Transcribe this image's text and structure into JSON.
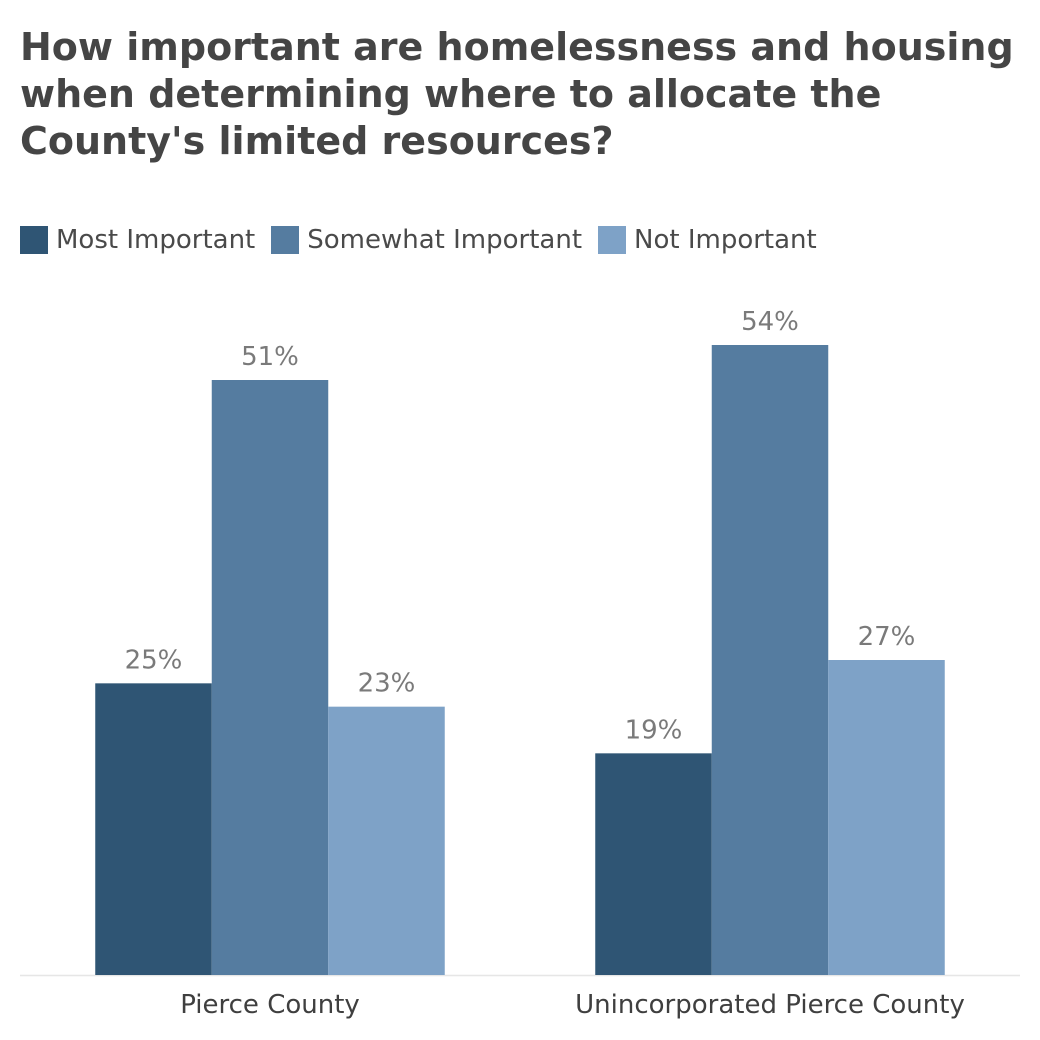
{
  "chart_data": {
    "type": "bar",
    "title": "How important are homelessness and housing when determining where to allocate the County's limited resources?",
    "categories": [
      "Pierce County",
      "Unincorporated Pierce County"
    ],
    "series": [
      {
        "name": "Most Important",
        "values": [
          25,
          19
        ],
        "labels": [
          "25%",
          "19%"
        ],
        "color": "#2f5574"
      },
      {
        "name": "Somewhat Important",
        "values": [
          51,
          54
        ],
        "labels": [
          "51%",
          "54%"
        ],
        "color": "#557ca0"
      },
      {
        "name": "Not Important",
        "values": [
          23,
          27
        ],
        "labels": [
          "23%",
          "27%"
        ],
        "color": "#7ea2c7"
      }
    ],
    "ylim": [
      0,
      54
    ],
    "unit": "%",
    "grid": false,
    "legend_position": "top-left",
    "colors": {
      "title": "#454545",
      "legend_text": "#4a4a4a",
      "data_label": "#7a7a7a",
      "category_label": "#3f3f3f",
      "baseline": "#e6e6e6"
    }
  }
}
